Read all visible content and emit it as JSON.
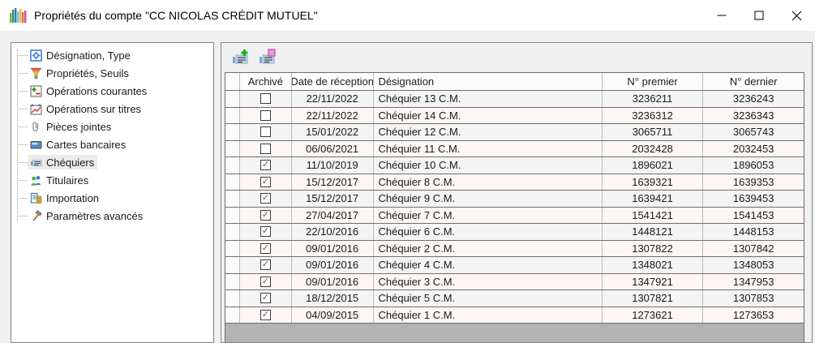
{
  "window": {
    "title": "Propriétés du compte \"CC NICOLAS CRÉDIT MUTUEL\"",
    "icon": "app-logo-bars-icon"
  },
  "sidebar": {
    "items": [
      {
        "label": "Désignation, Type",
        "icon": "gear-page-icon",
        "selected": false
      },
      {
        "label": "Propriétés, Seuils",
        "icon": "funnel-icon",
        "selected": false
      },
      {
        "label": "Opérations courantes",
        "icon": "plus-minus-icon",
        "selected": false
      },
      {
        "label": "Opérations sur titres",
        "icon": "securities-chart-icon",
        "selected": false
      },
      {
        "label": "Pièces jointes",
        "icon": "paperclip-icon",
        "selected": false
      },
      {
        "label": "Cartes bancaires",
        "icon": "bank-card-icon",
        "selected": false
      },
      {
        "label": "Chéquiers",
        "icon": "checkbook-icon",
        "selected": true
      },
      {
        "label": "Titulaires",
        "icon": "people-icon",
        "selected": false
      },
      {
        "label": "Importation",
        "icon": "import-icon",
        "selected": false
      },
      {
        "label": "Paramètres avancés",
        "icon": "tools-icon",
        "selected": false
      }
    ]
  },
  "toolbar": {
    "buttons": [
      {
        "name": "add-checkbook-button",
        "icon": "checkbook-add-icon"
      },
      {
        "name": "edit-checkbook-button",
        "icon": "checkbook-edit-icon"
      }
    ]
  },
  "table": {
    "columns": [
      "",
      "Archivé",
      "Date de réception",
      "Désignation",
      "N° premier",
      "N° dernier"
    ],
    "rows": [
      {
        "archived": false,
        "date": "22/11/2022",
        "designation": "Chéquier 13 C.M.",
        "first": "3236211",
        "last": "3236243"
      },
      {
        "archived": false,
        "date": "22/11/2022",
        "designation": "Chéquier 14 C.M.",
        "first": "3236312",
        "last": "3236343"
      },
      {
        "archived": false,
        "date": "15/01/2022",
        "designation": "Chéquier 12 C.M.",
        "first": "3065711",
        "last": "3065743"
      },
      {
        "archived": false,
        "date": "06/06/2021",
        "designation": "Chéquier 11 C.M.",
        "first": "2032428",
        "last": "2032453"
      },
      {
        "archived": true,
        "date": "11/10/2019",
        "designation": "Chéquier 10 C.M.",
        "first": "1896021",
        "last": "1896053"
      },
      {
        "archived": true,
        "date": "15/12/2017",
        "designation": "Chéquier 8 C.M.",
        "first": "1639321",
        "last": "1639353"
      },
      {
        "archived": true,
        "date": "15/12/2017",
        "designation": "Chéquier 9 C.M.",
        "first": "1639421",
        "last": "1639453"
      },
      {
        "archived": true,
        "date": "27/04/2017",
        "designation": "Chéquier 7 C.M.",
        "first": "1541421",
        "last": "1541453"
      },
      {
        "archived": true,
        "date": "22/10/2016",
        "designation": "Chéquier 6 C.M.",
        "first": "1448121",
        "last": "1448153"
      },
      {
        "archived": true,
        "date": "09/01/2016",
        "designation": "Chéquier 2 C.M.",
        "first": "1307822",
        "last": "1307842"
      },
      {
        "archived": true,
        "date": "09/01/2016",
        "designation": "Chéquier 4 C.M.",
        "first": "1348021",
        "last": "1348053"
      },
      {
        "archived": true,
        "date": "09/01/2016",
        "designation": "Chéquier 3 C.M.",
        "first": "1347921",
        "last": "1347953"
      },
      {
        "archived": true,
        "date": "18/12/2015",
        "designation": "Chéquier 5 C.M.",
        "first": "1307821",
        "last": "1307853"
      },
      {
        "archived": true,
        "date": "04/09/2015",
        "designation": "Chéquier 1 C.M.",
        "first": "1273621",
        "last": "1273653"
      }
    ]
  },
  "colors": {
    "row_alt_gray": "#f4f4f5",
    "row_alt_pink": "#fdf6f3",
    "selected_item_bg": "#ebebeb",
    "grid_dark": "#6f6f6f",
    "filler_gray": "#b3b3b3"
  }
}
